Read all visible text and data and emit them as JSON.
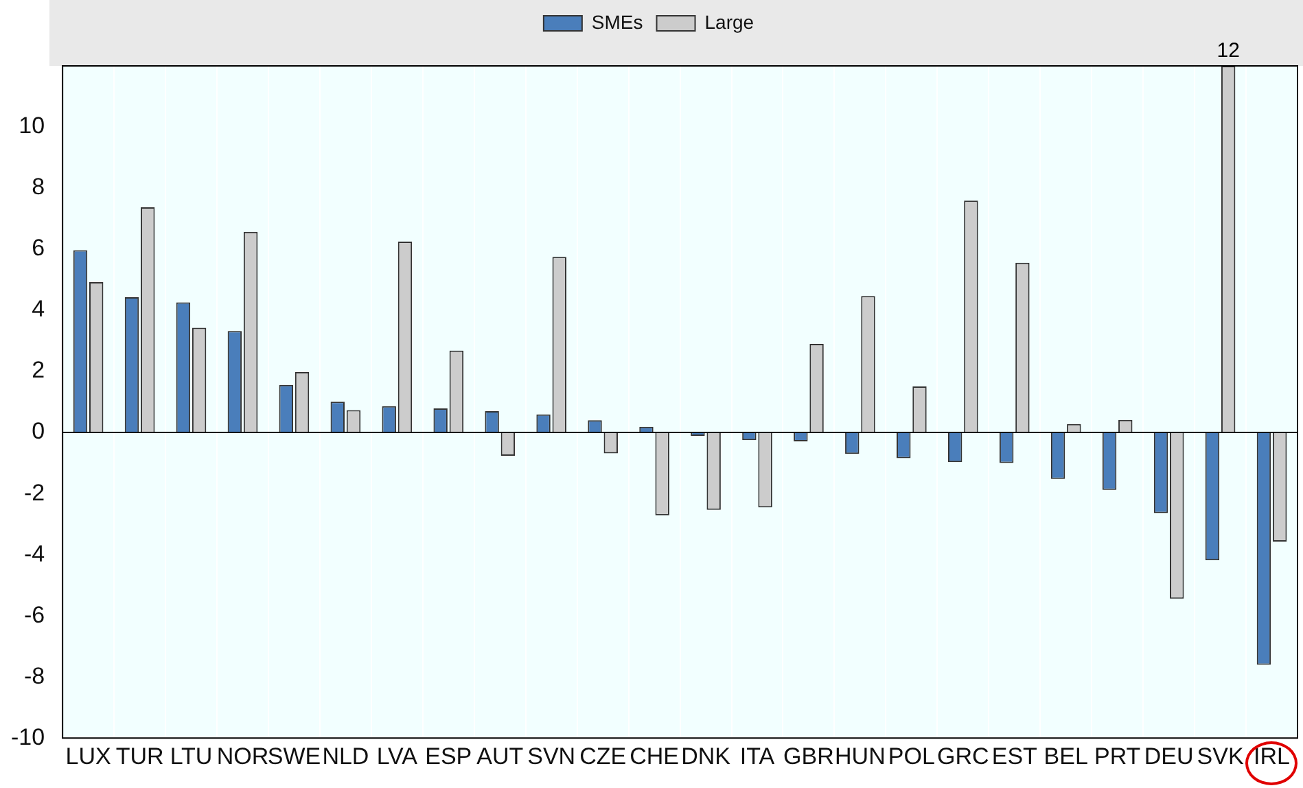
{
  "chart_data": {
    "type": "bar",
    "categories": [
      "LUX",
      "TUR",
      "LTU",
      "NOR",
      "SWE",
      "NLD",
      "LVA",
      "ESP",
      "AUT",
      "SVN",
      "CZE",
      "CHE",
      "DNK",
      "ITA",
      "GBR",
      "HUN",
      "POL",
      "GRC",
      "EST",
      "BEL",
      "PRT",
      "DEU",
      "SVK",
      "IRL"
    ],
    "series": [
      {
        "name": "SMEs",
        "color": "#4a7ebb",
        "values": [
          5.97,
          4.43,
          4.26,
          3.32,
          1.56,
          1.01,
          0.86,
          0.79,
          0.7,
          0.59,
          0.4,
          0.19,
          -0.11,
          -0.25,
          -0.29,
          -0.7,
          -0.84,
          -0.97,
          -1.0,
          -1.52,
          -1.88,
          -2.64,
          -4.18,
          -7.6
        ]
      },
      {
        "name": "Large",
        "color": "#cccccc",
        "values": [
          4.92,
          7.37,
          3.43,
          6.57,
          1.98,
          0.73,
          6.25,
          2.68,
          -0.76,
          5.75,
          -0.68,
          -2.71,
          -2.53,
          -2.45,
          2.9,
          4.47,
          1.51,
          7.59,
          5.56,
          0.28,
          0.41,
          -5.44,
          12,
          -3.57
        ],
        "value_labels": [
          null,
          null,
          null,
          null,
          null,
          null,
          null,
          null,
          null,
          null,
          null,
          null,
          null,
          null,
          null,
          null,
          null,
          null,
          null,
          null,
          null,
          null,
          "12",
          null
        ]
      }
    ],
    "ylim": [
      -10,
      12
    ],
    "yticks": [
      -10,
      -8,
      -6,
      -4,
      -2,
      0,
      2,
      4,
      6,
      8,
      10
    ],
    "grid": "x",
    "legend": "top"
  }
}
